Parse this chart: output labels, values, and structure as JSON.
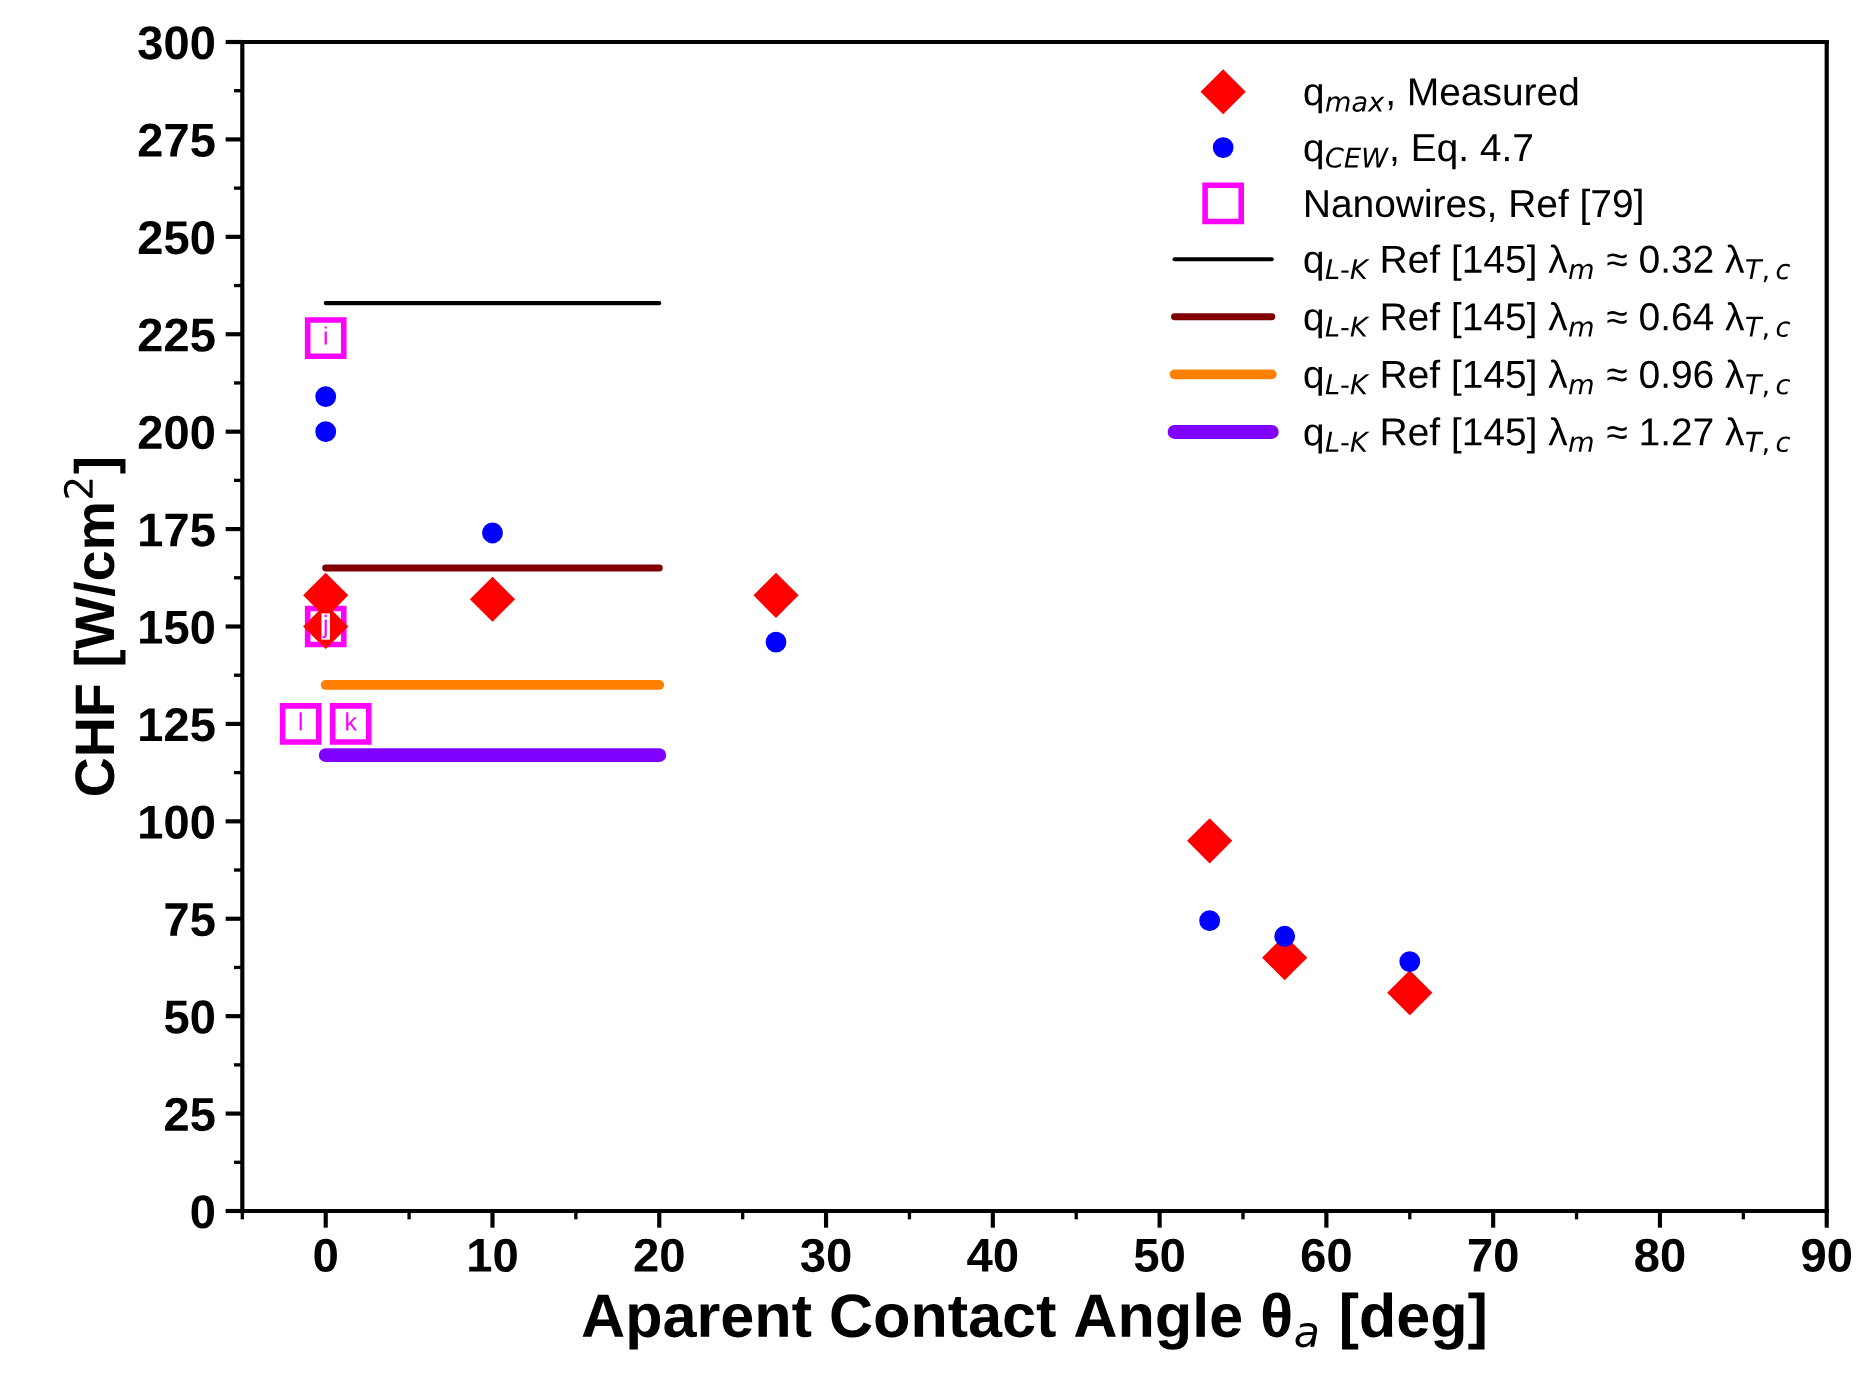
{
  "chart_data": {
    "type": "scatter",
    "xlabel": "Aparent Contact Angle θ$_{a}$ [deg]",
    "ylabel": "CHF [W/cm$^{2}$]",
    "xlim": [
      -5,
      90
    ],
    "ylim": [
      0,
      300
    ],
    "xticks": [
      0,
      10,
      20,
      30,
      40,
      50,
      60,
      70,
      80,
      90
    ],
    "yticks": [
      0,
      25,
      50,
      75,
      100,
      125,
      150,
      175,
      200,
      225,
      250,
      275,
      300
    ],
    "grid": false,
    "legend": "top right",
    "series": [
      {
        "name": "q$_{max}$, Measured",
        "marker": "diamond",
        "color": "#ff0000",
        "x": [
          0,
          0,
          10,
          27,
          53,
          57.5,
          65
        ],
        "values": [
          158,
          150,
          157,
          158,
          95,
          65,
          56
        ]
      },
      {
        "name": "q$_{CEW}$, Eq. 4.7",
        "marker": "circle",
        "color": "#0000ff",
        "x": [
          0,
          0,
          10,
          27,
          53,
          57.5,
          65
        ],
        "values": [
          209,
          200,
          174,
          146,
          74.5,
          70.5,
          64
        ]
      },
      {
        "name": "Nanowires, Ref [79]",
        "marker": "square",
        "color": "#ff00ff",
        "x": [
          0,
          0,
          -1.5,
          1.5
        ],
        "values": [
          224,
          150,
          125,
          125
        ]
      },
      {
        "name": "q$_{L‐K}$ Ref [145] λ$_{m}$ ≈ 0.32 λ$_{T,c}$",
        "type": "line",
        "marker": "none",
        "color": "#000000",
        "x": [
          0,
          20
        ],
        "values": [
          233,
          233
        ]
      },
      {
        "name": "q$_{L‐K}$ Ref [145] λ$_{m}$ ≈ 0.64 λ$_{T,c}$",
        "type": "line",
        "marker": "none",
        "color": "#800000",
        "x": [
          0,
          20
        ],
        "values": [
          165,
          165
        ]
      },
      {
        "name": "q$_{L‐K}$ Ref [145] λ$_{m}$ ≈ 0.96 λ$_{T,c}$",
        "type": "line",
        "marker": "none",
        "color": "#ff8000",
        "x": [
          0,
          20
        ],
        "values": [
          135,
          135
        ]
      },
      {
        "name": "q$_{L‐K}$ Ref [145] λ$_{m}$ ≈ 1.27 λ$_{T,c}$",
        "type": "line",
        "marker": "none",
        "color": "#8000ff",
        "x": [
          0,
          20
        ],
        "values": [
          117,
          117
        ]
      }
    ],
    "annotations": [
      {
        "text": "i",
        "x": 0,
        "y": 224
      },
      {
        "text": "j",
        "x": 0,
        "y": 150
      },
      {
        "text": "l",
        "x": -1.5,
        "y": 125
      },
      {
        "text": "k",
        "x": 1.5,
        "y": 125
      }
    ]
  }
}
